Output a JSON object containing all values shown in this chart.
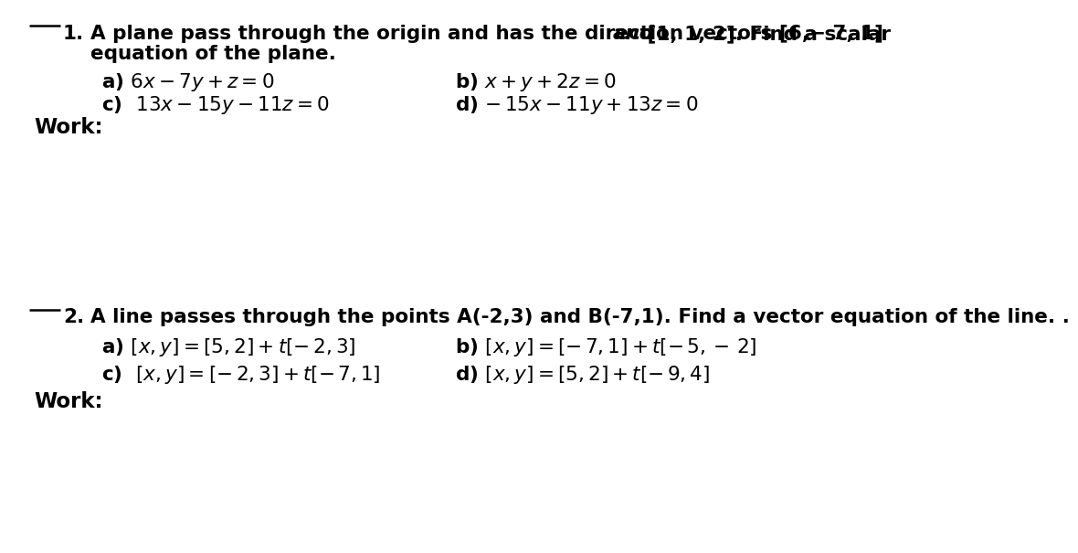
{
  "background_color": "#ffffff",
  "text_color": "#000000",
  "font_family": "DejaVu Sans",
  "fs_main": 15.5,
  "fs_opt": 15.5,
  "fs_work": 16.5,
  "q1_line1_plain1": "A plane pass through the origin and has the direction vectors [6,− 7, 1] ",
  "q1_line1_italic": "and",
  "q1_line1_plain2": " [1, 1, 2]. Find a scalar",
  "q1_line2": "equation of the plane.",
  "q1_a_left": "a) ",
  "q1_a_math": "$6x - 7y + z = 0$",
  "q1_b_left": "b) ",
  "q1_b_math": "$x + y + 2z = 0$",
  "q1_c_left": "c)  ",
  "q1_c_math": "$13x - 15y - 11z = 0$",
  "q1_d_left": "d) ",
  "q1_d_math": "$-15x - 11y + 13z = 0$",
  "q2_intro": "A line passes through the points A(-2,3) and B(-7,1). Find a vector equation of the line. .",
  "q2_a_math": "$[x, y] = [5, 2] + t[-\\ 2, 3]$",
  "q2_b_math": "$[x, y] = [-\\ 7, 1] + t[-\\ 5, -\\ 2]$",
  "q2_c_math": "$[x, y] = [-\\ 2, 3] + t[-\\ 7, 1]$",
  "q2_d_math": "$[x, y] = [5, 2] + t[-\\ 9, 4]$"
}
